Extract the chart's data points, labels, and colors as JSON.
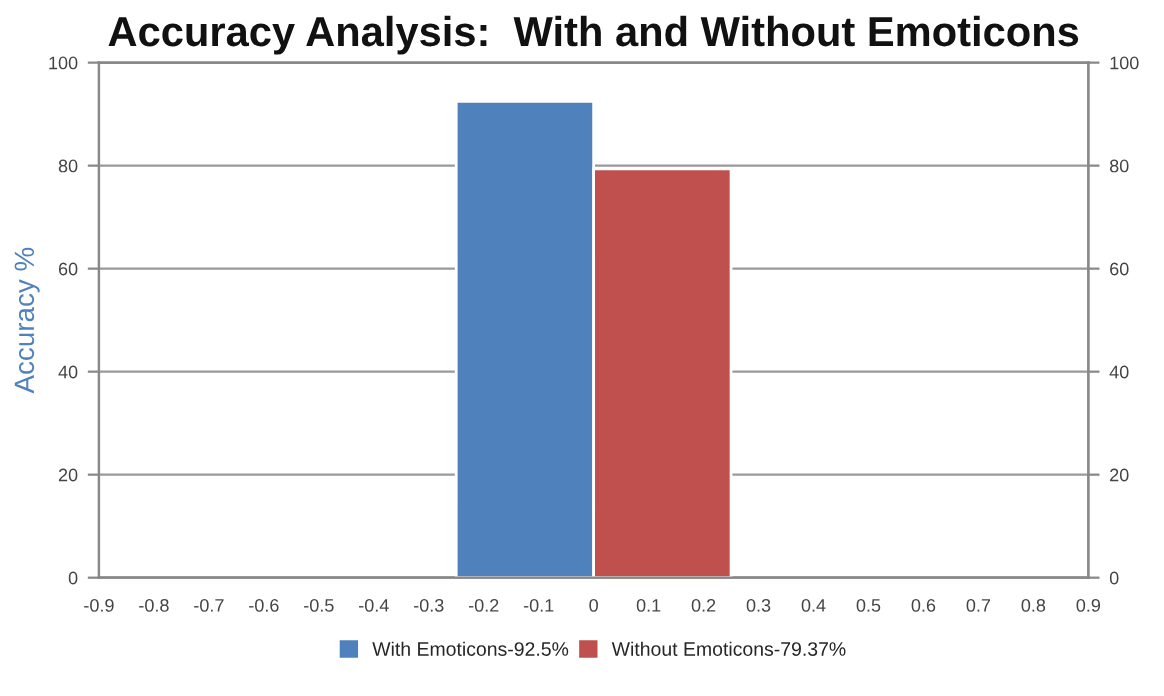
{
  "chart_data": {
    "type": "bar",
    "title": "Accuracy Analysis:  With and Without Emoticons",
    "ylabel": "Accuracy %",
    "series": [
      {
        "name": "With Emoticons-92.5%",
        "color": "#4f81bc",
        "x": [
          -0.125
        ],
        "values": [
          92.5
        ]
      },
      {
        "name": "Without Emoticons-79.37%",
        "color": "#c0504e",
        "x": [
          0.125
        ],
        "values": [
          79.37
        ]
      }
    ],
    "xlim": [
      -0.9,
      0.9
    ],
    "xticks": [
      -0.9,
      -0.8,
      -0.7,
      -0.6,
      -0.5,
      -0.4,
      -0.3,
      -0.2,
      -0.1,
      0,
      0.1,
      0.2,
      0.3,
      0.4,
      0.5,
      0.6,
      0.7,
      0.8,
      0.9
    ],
    "ylim": [
      0,
      100
    ],
    "yticks": [
      0,
      20,
      40,
      60,
      80,
      100
    ],
    "y2lim": [
      0,
      100
    ],
    "y2ticks": [
      0,
      20,
      40,
      60,
      80,
      100
    ],
    "grid": "y",
    "legend": "bottom"
  }
}
